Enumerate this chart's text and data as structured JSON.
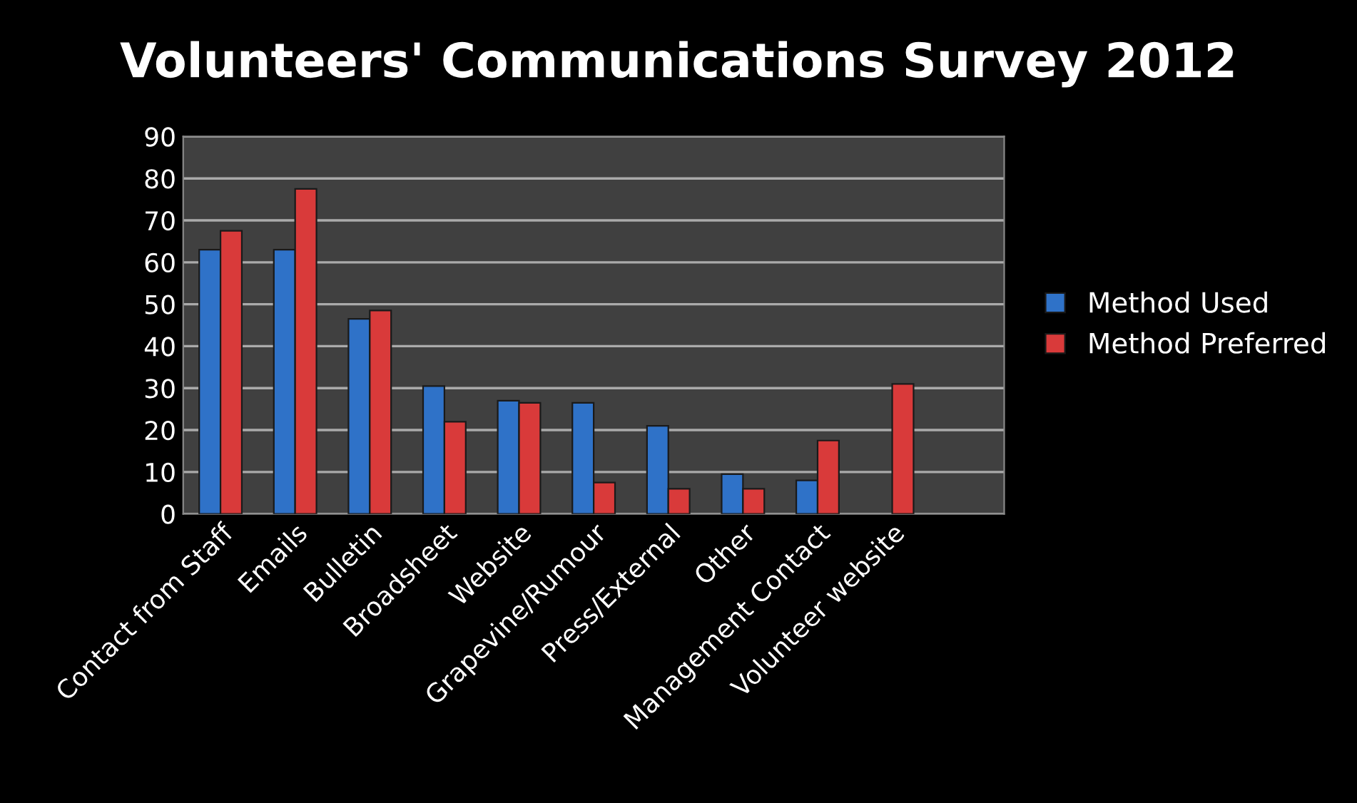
{
  "chart_data": {
    "type": "bar",
    "title": "Volunteers' Communications Survey 2012",
    "categories": [
      "Contact from Staff",
      "Emails",
      "Bulletin",
      "Broadsheet",
      "Website",
      "Grapevine/Rumour",
      "Press/External",
      "Other",
      "Management Contact",
      "Volunteer website",
      null
    ],
    "series": [
      {
        "name": "Method Used",
        "color": "#2f72c8",
        "values": [
          63,
          63,
          46.5,
          30.5,
          27,
          26.5,
          21,
          9.5,
          8,
          null,
          null
        ]
      },
      {
        "name": "Method Preferred",
        "color": "#d93a3a",
        "values": [
          67.5,
          77.5,
          48.5,
          22,
          26.5,
          7.5,
          6,
          6,
          17.5,
          31,
          null
        ]
      }
    ],
    "ylim": [
      0,
      90
    ],
    "yticks": [
      0,
      10,
      20,
      30,
      40,
      50,
      60,
      70,
      80,
      90
    ],
    "grid": "y",
    "legend": "right"
  }
}
